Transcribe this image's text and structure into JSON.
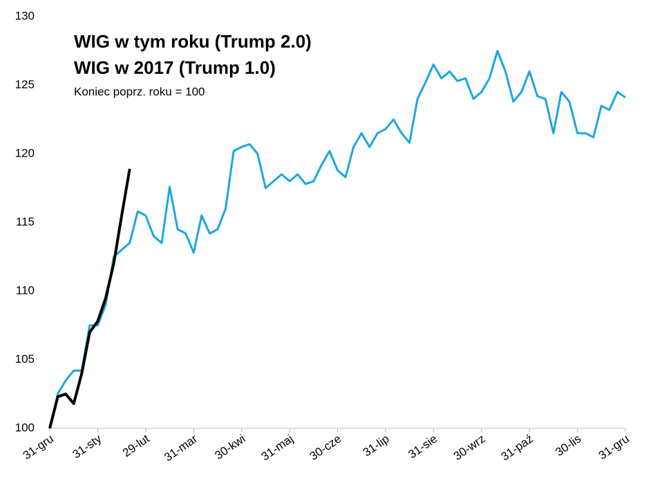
{
  "chart_data": {
    "type": "line",
    "subtitle": "Koniec poprz. roku = 100",
    "categories": [
      "31-gru",
      null,
      null,
      null,
      null,
      null,
      "31-sty",
      null,
      null,
      null,
      null,
      null,
      "29-lut",
      null,
      null,
      null,
      null,
      null,
      "31-mar",
      null,
      null,
      null,
      null,
      null,
      "30-kwi",
      null,
      null,
      null,
      null,
      null,
      "31-maj",
      null,
      null,
      null,
      null,
      null,
      "30-cze",
      null,
      null,
      null,
      null,
      null,
      "31-lip",
      null,
      null,
      null,
      null,
      null,
      "31-sie",
      null,
      null,
      null,
      null,
      null,
      "30-wrz",
      null,
      null,
      null,
      null,
      null,
      "31-paź",
      null,
      null,
      null,
      null,
      null,
      "30-lis",
      null,
      null,
      null,
      null,
      null,
      "31-gru"
    ],
    "series": [
      {
        "name": "WIG w tym roku (Trump 2.0)",
        "color": "#000000",
        "values": [
          100,
          102.3,
          102.5,
          101.8,
          104,
          107,
          107.8,
          109.5,
          112,
          115.5,
          118.9,
          null,
          null,
          null,
          null,
          null,
          null,
          null,
          null,
          null,
          null,
          null,
          null,
          null,
          null,
          null,
          null,
          null,
          null,
          null,
          null,
          null,
          null,
          null,
          null,
          null,
          null,
          null,
          null,
          null,
          null,
          null,
          null,
          null,
          null,
          null,
          null,
          null,
          null,
          null,
          null,
          null,
          null,
          null,
          null,
          null,
          null,
          null,
          null,
          null,
          null,
          null,
          null,
          null,
          null,
          null,
          null,
          null,
          null,
          null,
          null,
          null,
          null
        ]
      },
      {
        "name": "WIG w 2017 (Trump 1.0)",
        "color": "#1aa6e0",
        "values": [
          100,
          102.5,
          103.5,
          104.2,
          104.2,
          107.5,
          107.5,
          109,
          112.5,
          113,
          113.5,
          115.8,
          115.5,
          114,
          113.5,
          117.6,
          114.5,
          114.2,
          112.8,
          115.5,
          114.2,
          114.5,
          116,
          120.2,
          120.5,
          120.7,
          120,
          117.5,
          118,
          118.5,
          118,
          118.5,
          117.8,
          118,
          119.2,
          120.2,
          118.8,
          118.3,
          120.5,
          121.5,
          120.5,
          121.5,
          121.8,
          122.5,
          121.5,
          120.8,
          124,
          125.2,
          126.5,
          125.5,
          126,
          125.3,
          125.5,
          124,
          124.5,
          125.5,
          127.5,
          126,
          123.8,
          124.5,
          126,
          124.2,
          124,
          121.5,
          124.5,
          123.8,
          121.5,
          121.5,
          121.2,
          123.5,
          123.2,
          124.5,
          124.1
        ]
      }
    ],
    "ylim": [
      100,
      130
    ],
    "yticks": [
      100,
      105,
      110,
      115,
      120,
      125,
      130
    ],
    "grid": false
  }
}
